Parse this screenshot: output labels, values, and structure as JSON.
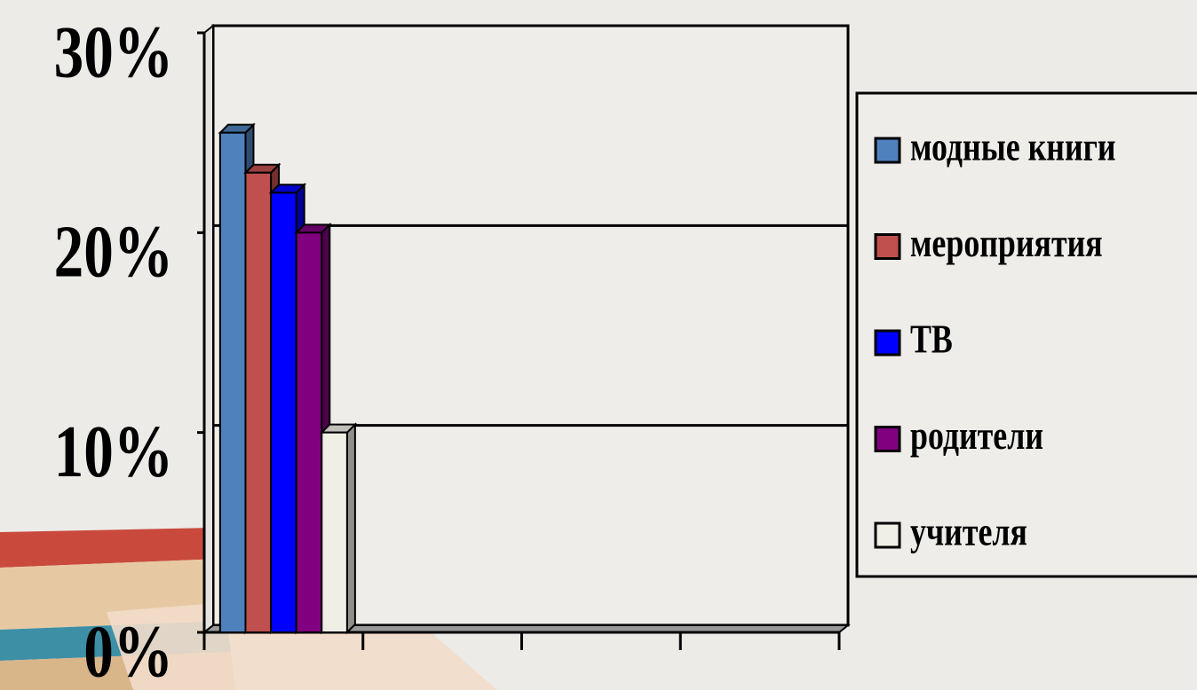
{
  "chart_data": {
    "type": "bar3d",
    "categories": [
      null,
      null,
      null,
      null
    ],
    "series": [
      {
        "name": "модные книги",
        "color": "#4f81bd",
        "values": [
          25,
          null,
          null,
          null
        ]
      },
      {
        "name": "мероприятия",
        "color": "#c0504d",
        "values": [
          23,
          null,
          null,
          null
        ]
      },
      {
        "name": "ТВ",
        "color": "#0000ff",
        "values": [
          22,
          null,
          null,
          null
        ]
      },
      {
        "name": "родители",
        "color": "#800080",
        "values": [
          20,
          null,
          null,
          null
        ]
      },
      {
        "name": "учителя",
        "color": "#f0efe6",
        "values": [
          10,
          null,
          null,
          null
        ]
      }
    ],
    "ylim": [
      0,
      30
    ],
    "yticks": [
      {
        "value": 0,
        "label": "0%"
      },
      {
        "value": 10,
        "label": "10%"
      },
      {
        "value": 20,
        "label": "20%"
      },
      {
        "value": 30,
        "label": "30%"
      }
    ],
    "grid": true,
    "legend": "right"
  }
}
